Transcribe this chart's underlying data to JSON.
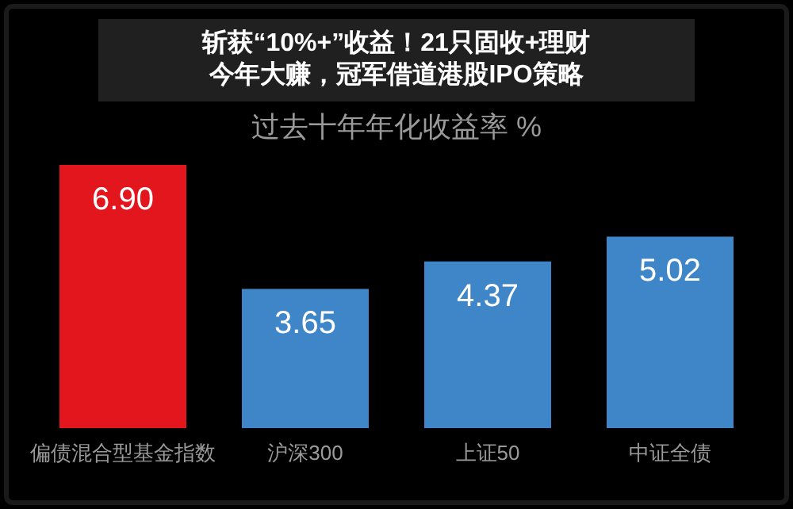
{
  "chart_data": {
    "type": "bar",
    "title": "过去十年年化收益率 %",
    "categories": [
      "偏债混合型基金指数",
      "沪深300",
      "上证50",
      "中证全债"
    ],
    "values": [
      6.9,
      3.65,
      4.37,
      5.02
    ],
    "value_labels": [
      "6.90",
      "3.65",
      "4.37",
      "5.02"
    ],
    "colors": [
      "#e3161d",
      "#3f86c8",
      "#3f86c8",
      "#3f86c8"
    ],
    "annotations": [
      "斩获“10%+”收益！21只固收+理财",
      "今年大赚，冠军借道港股IPO策略"
    ]
  }
}
